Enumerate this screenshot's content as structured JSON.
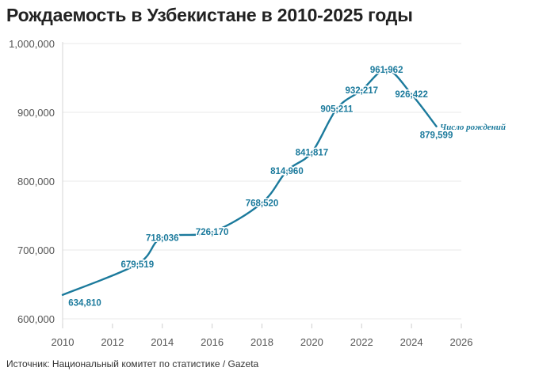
{
  "chart_data": {
    "type": "line",
    "title": "Рождаемость в Узбекистане в 2010-2025 годы",
    "source": "Источник: Национальный комитет по статистике / Gazeta",
    "xlabel": "",
    "ylabel": "",
    "xlim": [
      2010,
      2026
    ],
    "ylim": [
      600000,
      1000000
    ],
    "x_ticks": [
      "2010",
      "2012",
      "2014",
      "2016",
      "2018",
      "2020",
      "2022",
      "2024",
      "2026"
    ],
    "y_ticks": [
      "600,000",
      "700,000",
      "800,000",
      "900,000",
      "1,000,000"
    ],
    "grid": true,
    "color": "#1b7a9c",
    "series": [
      {
        "name": "Число рождений",
        "points": [
          {
            "x": 2010,
            "y": 634810,
            "label": "634,810"
          },
          {
            "x": 2013,
            "y": 679519,
            "label": "679,519"
          },
          {
            "x": 2014,
            "y": 718036,
            "label": "718,036"
          },
          {
            "x": 2016,
            "y": 726170,
            "label": "726,170"
          },
          {
            "x": 2018,
            "y": 768520,
            "label": "768,520"
          },
          {
            "x": 2019,
            "y": 814960,
            "label": "814,960"
          },
          {
            "x": 2020,
            "y": 841817,
            "label": "841,817"
          },
          {
            "x": 2021,
            "y": 905211,
            "label": "905,211"
          },
          {
            "x": 2022,
            "y": 932217,
            "label": "932,217"
          },
          {
            "x": 2023,
            "y": 961962,
            "label": "961,962"
          },
          {
            "x": 2024,
            "y": 926422,
            "label": "926,422"
          },
          {
            "x": 2025,
            "y": 879599,
            "label": "879,599"
          }
        ]
      }
    ]
  }
}
